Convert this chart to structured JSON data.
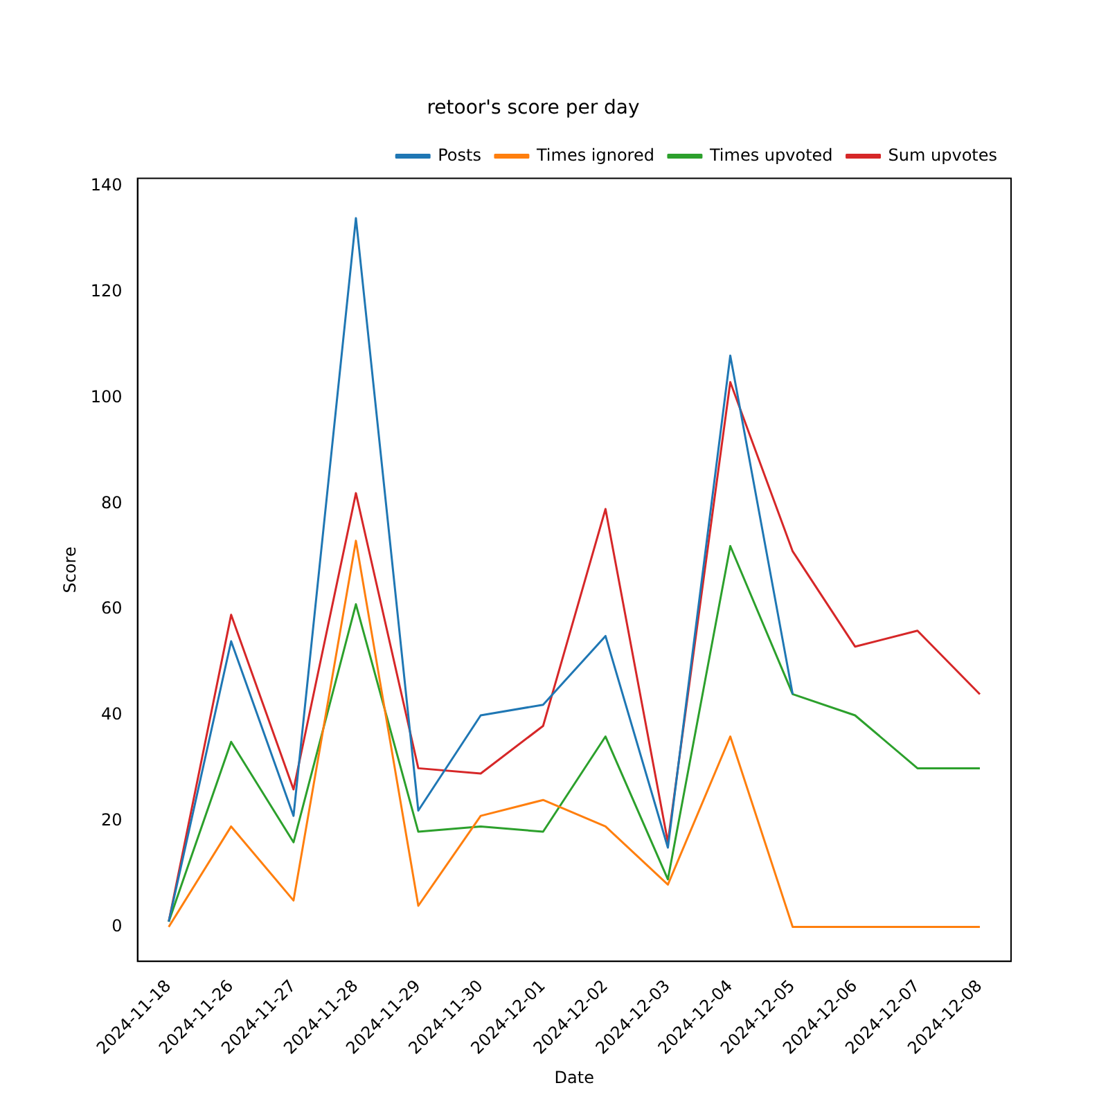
{
  "chart_data": {
    "type": "line",
    "title": "retoor's score per day",
    "xlabel": "Date",
    "ylabel": "Score",
    "categories": [
      "2024-11-18",
      "2024-11-26",
      "2024-11-27",
      "2024-11-28",
      "2024-11-29",
      "2024-11-30",
      "2024-12-01",
      "2024-12-02",
      "2024-12-03",
      "2024-12-04",
      "2024-12-05",
      "2024-12-06",
      "2024-12-07",
      "2024-12-08"
    ],
    "series": [
      {
        "name": "Posts",
        "color": "#1f77b4",
        "values": [
          1,
          54,
          21,
          134,
          22,
          40,
          42,
          55,
          15,
          108,
          44,
          null,
          null,
          null
        ]
      },
      {
        "name": "Times ignored",
        "color": "#ff7f0e",
        "values": [
          0,
          19,
          5,
          73,
          4,
          21,
          24,
          19,
          8,
          36,
          0,
          0,
          0,
          0
        ]
      },
      {
        "name": "Times upvoted",
        "color": "#2ca02c",
        "values": [
          1,
          35,
          16,
          61,
          18,
          19,
          18,
          36,
          9,
          72,
          44,
          40,
          30,
          30
        ]
      },
      {
        "name": "Sum upvotes",
        "color": "#d62728",
        "values": [
          1,
          59,
          26,
          82,
          30,
          29,
          38,
          79,
          16,
          103,
          71,
          53,
          56,
          44
        ]
      }
    ],
    "ylim": [
      -6.5,
      141.5
    ],
    "yticks": [
      0,
      20,
      40,
      60,
      80,
      100,
      120,
      140
    ],
    "grid": false,
    "legend": "top right",
    "marker": "none",
    "line_style": "solid"
  }
}
